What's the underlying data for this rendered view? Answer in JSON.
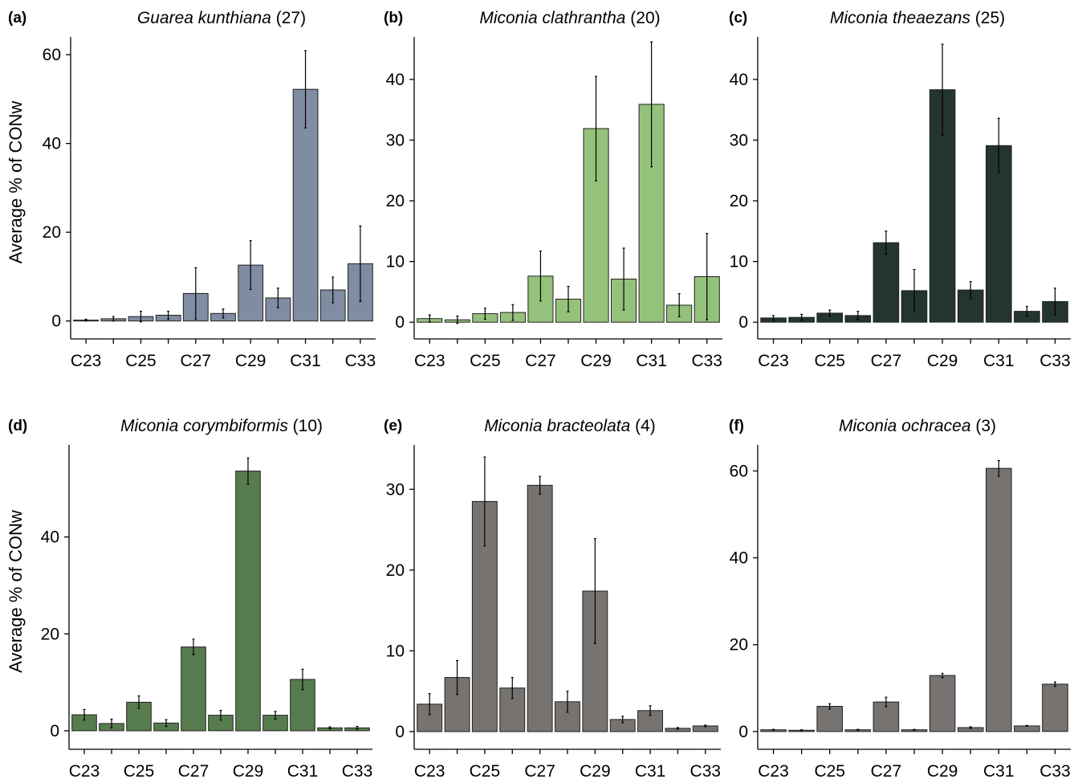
{
  "y_axis_label": "Average % of CONw",
  "chart_data": [
    {
      "type": "bar",
      "panel": "(a)",
      "title_species": "Guarea kunthiana",
      "title_count": " (27)",
      "color": "#7f8ca1",
      "categories": [
        "C23",
        "C24",
        "C25",
        "C26",
        "C27",
        "C28",
        "C29",
        "C30",
        "C31",
        "C32",
        "C33"
      ],
      "tick_labels": [
        "C23",
        "C25",
        "C27",
        "C29",
        "C31",
        "C33"
      ],
      "values": [
        0.2,
        0.5,
        1.0,
        1.3,
        6.2,
        1.7,
        12.6,
        5.2,
        52.2,
        7.0,
        12.9
      ],
      "errors": [
        0.2,
        0.5,
        1.2,
        0.9,
        5.8,
        1.0,
        5.5,
        2.2,
        8.7,
        2.9,
        8.5
      ],
      "yticks": [
        0,
        20,
        40,
        60
      ],
      "ylim": [
        -1.5,
        64
      ]
    },
    {
      "type": "bar",
      "panel": "(b)",
      "title_species": "Miconia clathrantha",
      "title_count": " (20)",
      "color": "#95c27b",
      "categories": [
        "C23",
        "C24",
        "C25",
        "C26",
        "C27",
        "C28",
        "C29",
        "C30",
        "C31",
        "C32",
        "C33"
      ],
      "tick_labels": [
        "C23",
        "C25",
        "C27",
        "C29",
        "C31",
        "C33"
      ],
      "values": [
        0.6,
        0.4,
        1.4,
        1.6,
        7.6,
        3.8,
        31.9,
        7.1,
        35.9,
        2.8,
        7.5
      ],
      "errors": [
        0.6,
        0.6,
        0.9,
        1.3,
        4.1,
        2.1,
        8.6,
        5.1,
        10.3,
        1.9,
        7.1
      ],
      "yticks": [
        0,
        10,
        20,
        30,
        40
      ],
      "ylim": [
        -0.9,
        47
      ]
    },
    {
      "type": "bar",
      "panel": "(c)",
      "title_species": "Miconia theaezans",
      "title_count": " (25)",
      "color": "#243431",
      "categories": [
        "C23",
        "C24",
        "C25",
        "C26",
        "C27",
        "C28",
        "C29",
        "C30",
        "C31",
        "C32",
        "C33"
      ],
      "tick_labels": [
        "C23",
        "C25",
        "C27",
        "C29",
        "C31",
        "C33"
      ],
      "values": [
        0.7,
        0.8,
        1.5,
        1.1,
        13.1,
        5.2,
        38.3,
        5.3,
        29.1,
        1.8,
        3.4
      ],
      "errors": [
        0.4,
        0.5,
        0.5,
        0.7,
        1.9,
        3.5,
        7.5,
        1.4,
        4.5,
        0.8,
        2.2
      ],
      "yticks": [
        0,
        10,
        20,
        30,
        40
      ],
      "ylim": [
        -0.9,
        47
      ]
    },
    {
      "type": "bar",
      "panel": "(d)",
      "title_species": "Miconia corymbiformis",
      "title_count": " (10)",
      "color": "#567c4e",
      "categories": [
        "C23",
        "C24",
        "C25",
        "C26",
        "C27",
        "C28",
        "C29",
        "C30",
        "C31",
        "C32",
        "C33"
      ],
      "tick_labels": [
        "C23",
        "C25",
        "C27",
        "C29",
        "C31",
        "C33"
      ],
      "values": [
        3.3,
        1.5,
        5.9,
        1.6,
        17.3,
        3.2,
        53.6,
        3.2,
        10.6,
        0.6,
        0.6
      ],
      "errors": [
        1.1,
        0.9,
        1.3,
        0.7,
        1.6,
        1.0,
        2.7,
        0.8,
        2.1,
        0.2,
        0.3
      ],
      "yticks": [
        0,
        20,
        40
      ],
      "ylim": [
        -1.5,
        59
      ]
    },
    {
      "type": "bar",
      "panel": "(e)",
      "title_species": "Miconia bracteolata",
      "title_count": " (4)",
      "color": "#767370",
      "categories": [
        "C23",
        "C24",
        "C25",
        "C26",
        "C27",
        "C28",
        "C29",
        "C30",
        "C31",
        "C32",
        "C33"
      ],
      "tick_labels": [
        "C23",
        "C25",
        "C27",
        "C29",
        "C31",
        "C33"
      ],
      "values": [
        3.4,
        6.7,
        28.5,
        5.4,
        30.5,
        3.7,
        17.4,
        1.5,
        2.6,
        0.4,
        0.7
      ],
      "errors": [
        1.3,
        2.1,
        5.5,
        1.3,
        1.1,
        1.3,
        6.5,
        0.4,
        0.6,
        0.1,
        0.1
      ],
      "yticks": [
        0,
        10,
        20,
        30
      ],
      "ylim": [
        -0.8,
        35.5
      ]
    },
    {
      "type": "bar",
      "panel": "(f)",
      "title_species": "Miconia ochracea",
      "title_count": " (3)",
      "color": "#767370",
      "categories": [
        "C23",
        "C24",
        "C25",
        "C26",
        "C27",
        "C28",
        "C29",
        "C30",
        "C31",
        "C32",
        "C33"
      ],
      "tick_labels": [
        "C23",
        "C25",
        "C27",
        "C29",
        "C31",
        "C33"
      ],
      "values": [
        0.4,
        0.3,
        5.8,
        0.4,
        6.8,
        0.4,
        12.9,
        0.9,
        60.6,
        1.3,
        10.9
      ],
      "errors": [
        0.1,
        0.1,
        0.6,
        0.1,
        1.1,
        0.1,
        0.5,
        0.2,
        1.8,
        0.1,
        0.5
      ],
      "yticks": [
        0,
        20,
        40,
        60
      ],
      "ylim": [
        -1.5,
        66
      ]
    }
  ]
}
